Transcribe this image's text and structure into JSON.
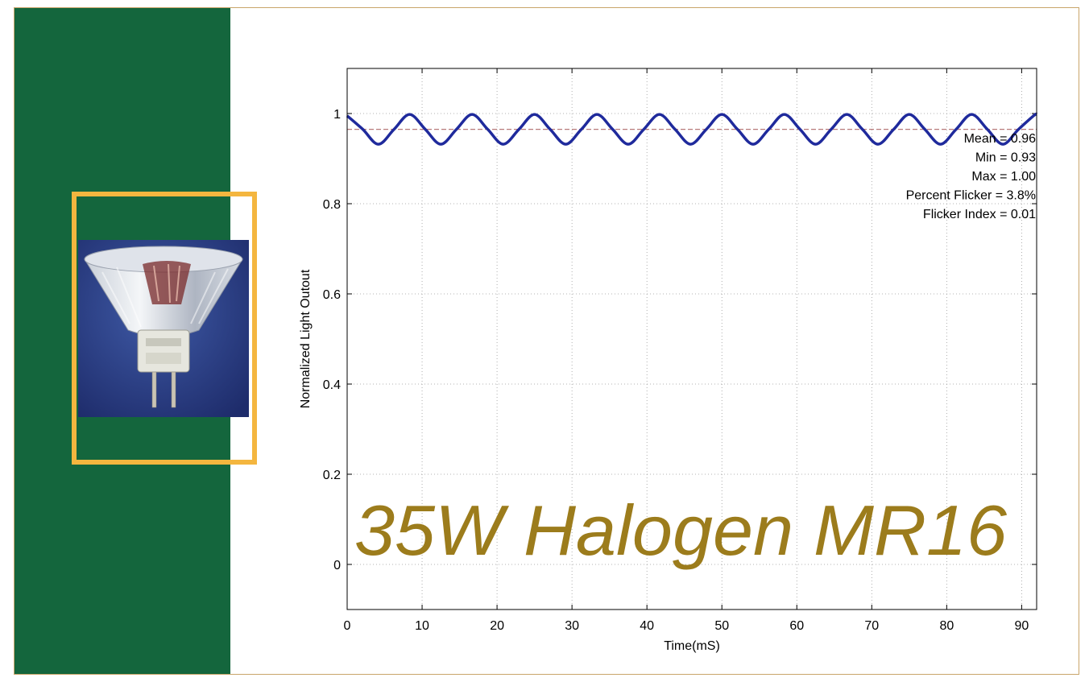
{
  "colors": {
    "green_panel": "#14663d",
    "photo_border": "#f4b63f",
    "series": "#1f2a9c",
    "mean_line": "#b87a7a",
    "overlay_title": "#9c7c1c",
    "frame_border": "#c9a56a"
  },
  "photo": {
    "icon": "halogen-mr16-bulb-photo"
  },
  "chart_data": {
    "type": "line",
    "title": "35W Halogen MR16",
    "xlabel": "Time(mS)",
    "ylabel": "Normalized Light Outout",
    "xlim": [
      0,
      92
    ],
    "ylim": [
      -0.1,
      1.1
    ],
    "xticks": [
      0,
      10,
      20,
      30,
      40,
      50,
      60,
      70,
      80,
      90
    ],
    "xtick_labels": [
      "0",
      "10",
      "20",
      "30",
      "40",
      "50",
      "60",
      "70",
      "80",
      "90"
    ],
    "yticks": [
      0,
      0.2,
      0.4,
      0.6,
      0.8,
      1
    ],
    "ytick_labels": [
      "0",
      "0.2",
      "0.4",
      "0.6",
      "0.8",
      "1"
    ],
    "grid": true,
    "mean_value": 0.965,
    "series": [
      {
        "x": [
          0,
          2.08,
          4.17,
          6.25,
          8.33,
          10.42,
          12.5,
          14.58,
          16.67,
          18.75,
          20.83,
          22.92,
          25,
          27.08,
          29.17,
          31.25,
          33.33,
          35.42,
          37.5,
          39.58,
          41.67,
          43.75,
          45.83,
          47.92,
          50,
          52.08,
          54.17,
          56.25,
          58.33,
          60.42,
          62.5,
          64.58,
          66.67,
          68.75,
          70.83,
          72.92,
          75,
          77.08,
          79.17,
          81.25,
          83.33,
          85.42,
          87.5,
          89.58,
          91.67,
          92
        ],
        "y": [
          0.995,
          0.965,
          0.932,
          0.965,
          0.998,
          0.965,
          0.932,
          0.965,
          0.998,
          0.965,
          0.932,
          0.965,
          0.998,
          0.965,
          0.932,
          0.965,
          0.998,
          0.965,
          0.932,
          0.965,
          0.998,
          0.965,
          0.932,
          0.965,
          0.998,
          0.965,
          0.932,
          0.965,
          0.998,
          0.965,
          0.932,
          0.965,
          0.998,
          0.965,
          0.932,
          0.965,
          0.998,
          0.965,
          0.932,
          0.965,
          0.998,
          0.965,
          0.932,
          0.965,
          0.996,
          0.998
        ]
      }
    ],
    "annotations": [
      "Mean = 0.96",
      "Min = 0.93",
      "Max = 1.00",
      "Percent Flicker = 3.8%",
      "Flicker Index = 0.01"
    ]
  }
}
